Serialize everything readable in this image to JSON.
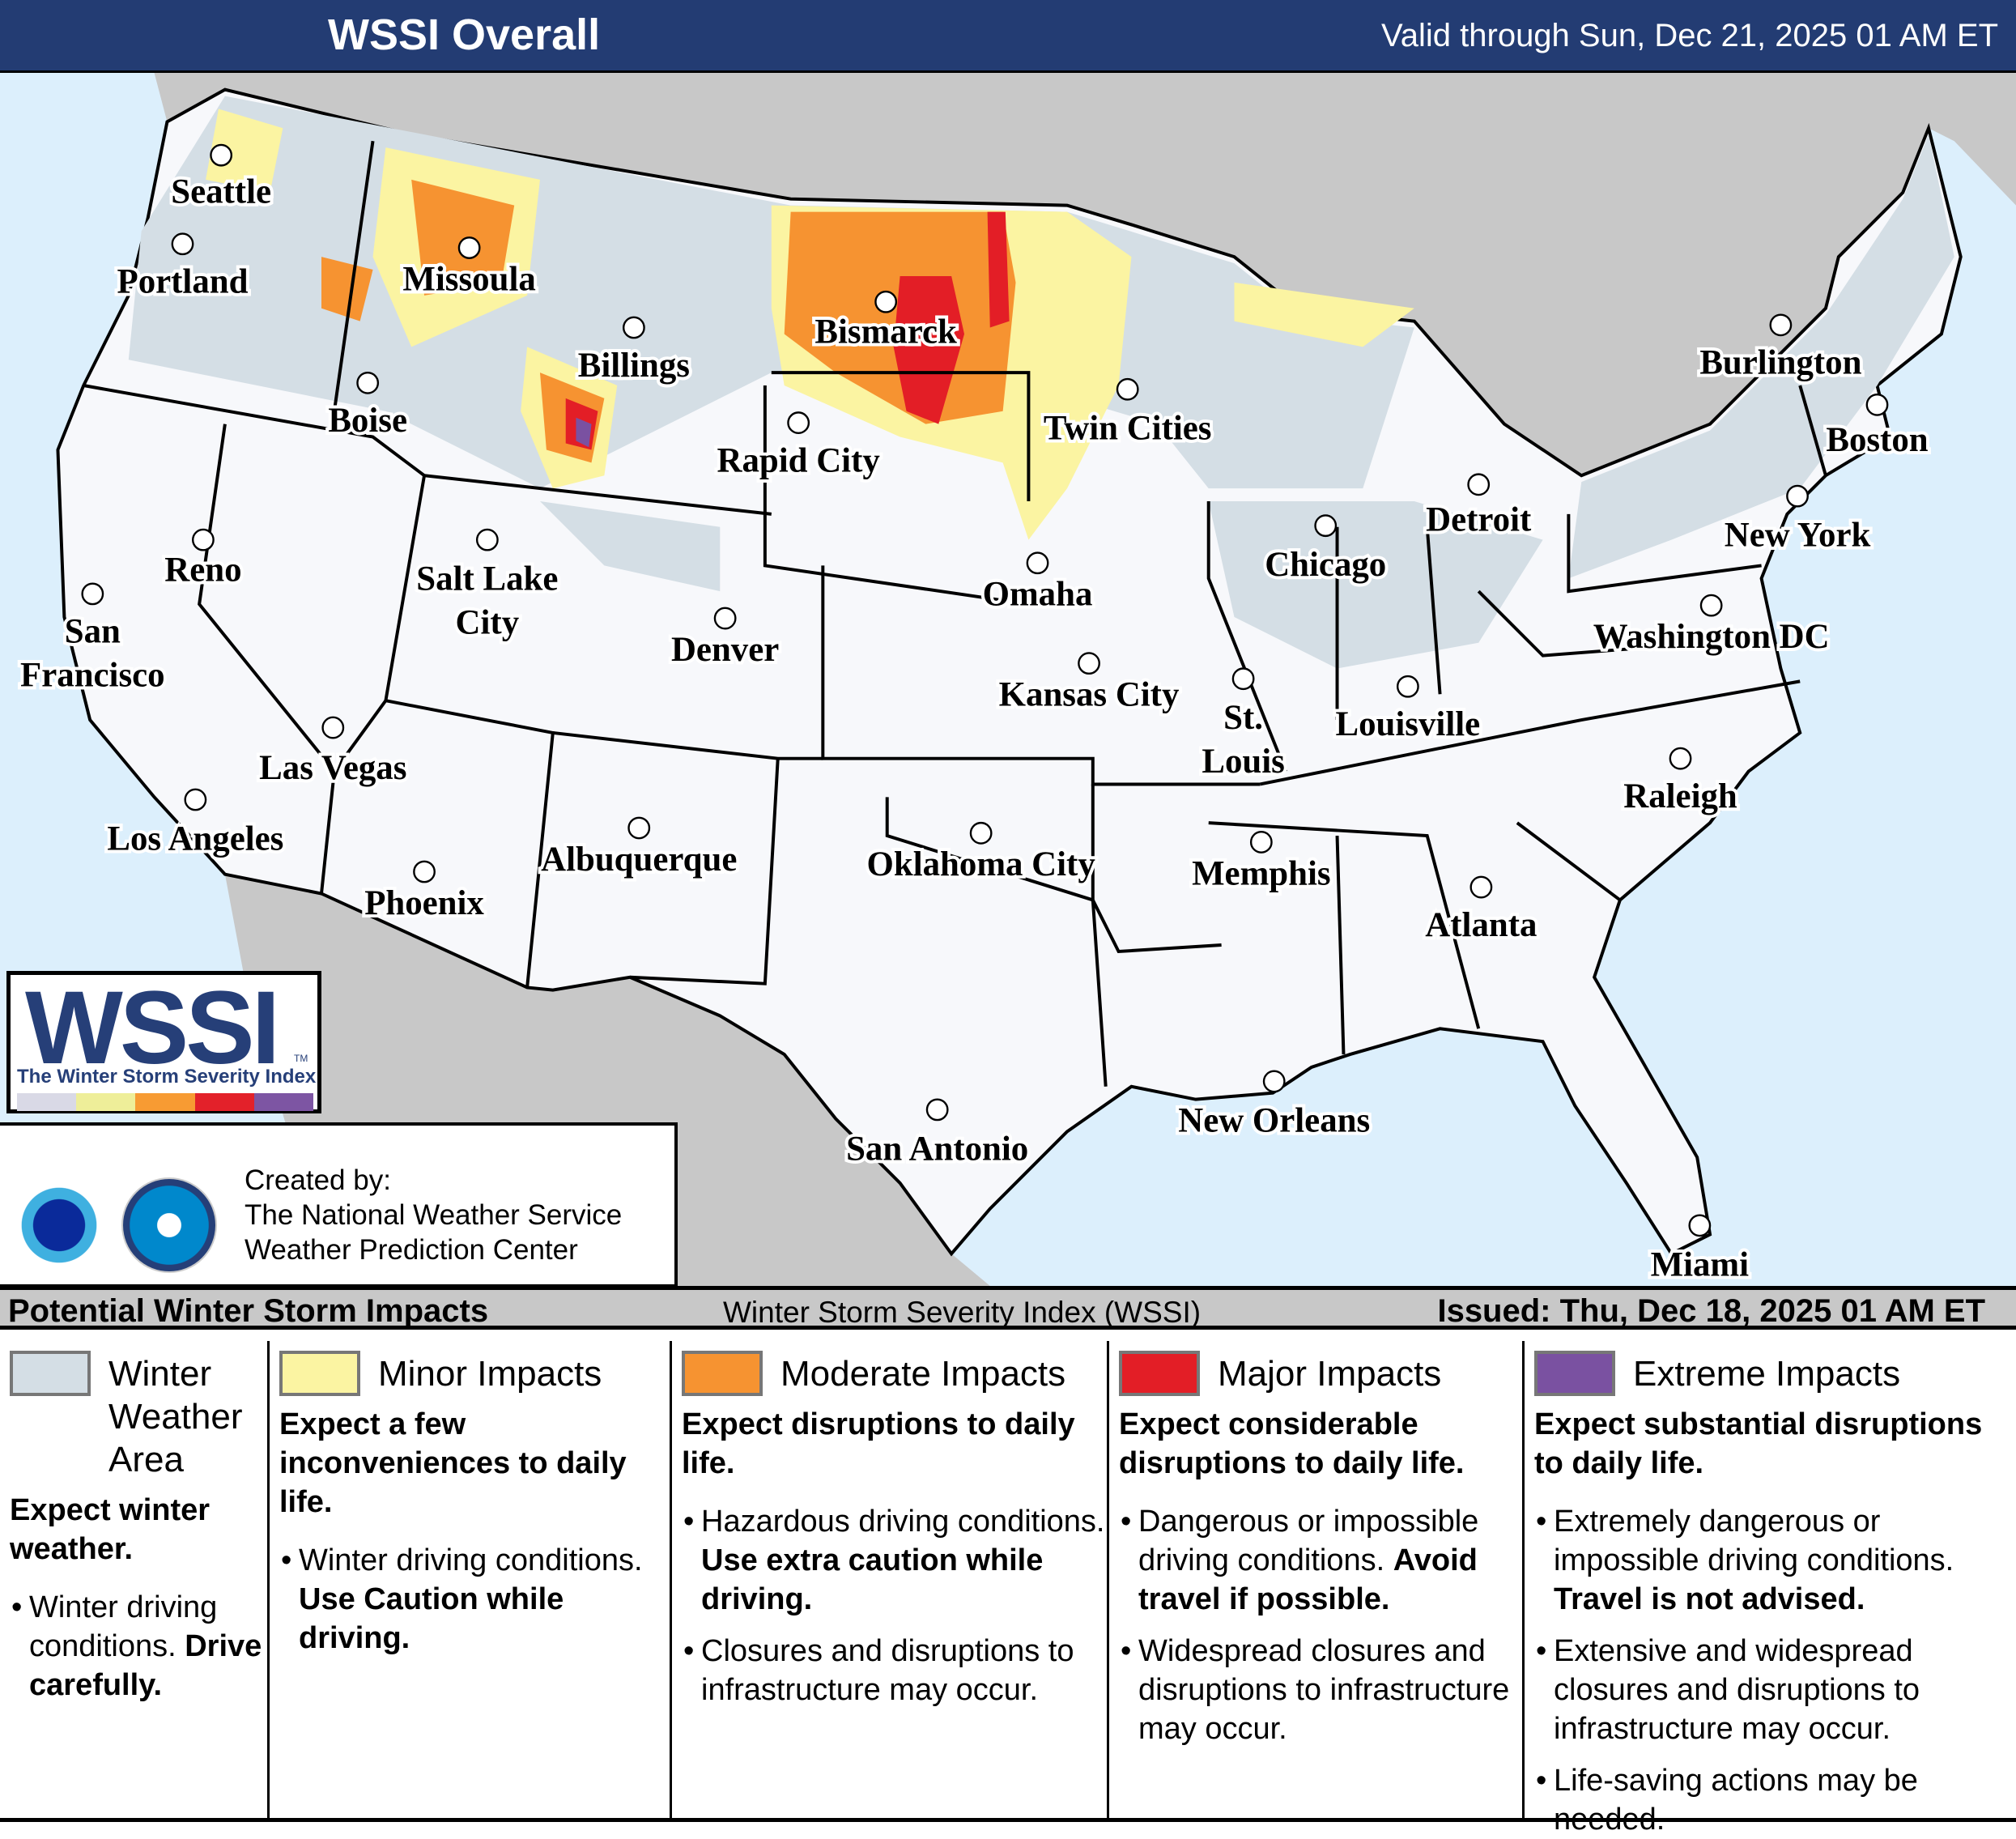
{
  "header": {
    "title": "WSSI Overall",
    "valid": "Valid through Sun, Dec 21, 2025 01 AM ET"
  },
  "map": {
    "colors": {
      "water": "#dceffc",
      "land_outside": "#c8c8c8",
      "land_none": "#f7f8fb",
      "winter_weather_area": "#d4dee5",
      "minor": "#fbf4a2",
      "moderate": "#f69331",
      "major": "#e31e26",
      "extreme": "#7a51a1"
    },
    "cities": [
      {
        "name": "Seattle"
      },
      {
        "name": "Portland"
      },
      {
        "name": "Missoula"
      },
      {
        "name": "Billings"
      },
      {
        "name": "Bismarck"
      },
      {
        "name": "Boise"
      },
      {
        "name": "Rapid City"
      },
      {
        "name": "Twin Cities"
      },
      {
        "name": "Burlington"
      },
      {
        "name": "Boston"
      },
      {
        "name": "Reno"
      },
      {
        "name": "Salt Lake City"
      },
      {
        "name": "Detroit"
      },
      {
        "name": "New York"
      },
      {
        "name": "Chicago"
      },
      {
        "name": "Omaha"
      },
      {
        "name": "San Francisco"
      },
      {
        "name": "Denver"
      },
      {
        "name": "Washington DC"
      },
      {
        "name": "Kansas City"
      },
      {
        "name": "St. Louis"
      },
      {
        "name": "Louisville"
      },
      {
        "name": "Las Vegas"
      },
      {
        "name": "Raleigh"
      },
      {
        "name": "Los Angeles"
      },
      {
        "name": "Albuquerque"
      },
      {
        "name": "Oklahoma City"
      },
      {
        "name": "Memphis"
      },
      {
        "name": "Phoenix"
      },
      {
        "name": "Atlanta"
      },
      {
        "name": "New Orleans"
      },
      {
        "name": "San Antonio"
      },
      {
        "name": "Miami"
      }
    ]
  },
  "logo": {
    "wordmark": "WSSI",
    "tm": "TM",
    "subtitle": "The Winter Storm Severity Index",
    "bar_colors": [
      "#d9d9e6",
      "#eeee99",
      "#f79b33",
      "#e3212a",
      "#7d55a3"
    ]
  },
  "credits": {
    "line1": "Created by:",
    "line2": "The National Weather Service",
    "line3": "Weather Prediction Center",
    "seals": [
      "National Weather Service seal",
      "NOAA seal"
    ]
  },
  "legend_bar": {
    "left": "Potential Winter Storm Impacts",
    "center": "Winter Storm Severity Index (WSSI)",
    "right": "Issued: Thu, Dec 18, 2025 01 AM ET"
  },
  "legend": [
    {
      "heading": "Winter Weather Area",
      "color": "#d4dee5",
      "desc": "Expect winter weather.",
      "bullets": [
        {
          "text": "Winter driving conditions. ",
          "bold": "Drive carefully."
        }
      ]
    },
    {
      "heading": "Minor Impacts",
      "color": "#fbf4a2",
      "desc": "Expect a few inconveniences to daily life.",
      "bullets": [
        {
          "text": "Winter driving conditions. ",
          "bold": "Use Caution while driving."
        }
      ]
    },
    {
      "heading": "Moderate Impacts",
      "color": "#f69331",
      "desc": "Expect disruptions to daily life.",
      "bullets": [
        {
          "text": "Hazardous driving conditions. ",
          "bold": "Use extra caution while driving."
        },
        {
          "text": "Closures and disruptions to infrastructure may occur.",
          "bold": ""
        }
      ]
    },
    {
      "heading": "Major Impacts",
      "color": "#e31e26",
      "desc": "Expect considerable disruptions to daily life.",
      "bullets": [
        {
          "text": "Dangerous or impossible driving conditions. ",
          "bold": "Avoid travel if possible."
        },
        {
          "text": "Widespread closures and disruptions to infrastructure may occur.",
          "bold": ""
        }
      ]
    },
    {
      "heading": "Extreme Impacts",
      "color": "#7a51a1",
      "desc": "Expect substantial disruptions to daily life.",
      "bullets": [
        {
          "text": "Extremely dangerous or impossible driving conditions. ",
          "bold": "Travel is not advised."
        },
        {
          "text": "Extensive and widespread closures and disruptions to infrastructure may occur.",
          "bold": ""
        },
        {
          "text": "Life-saving actions may be needed.",
          "bold": ""
        }
      ]
    }
  ]
}
